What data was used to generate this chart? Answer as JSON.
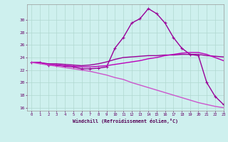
{
  "xlabel": "Windchill (Refroidissement éolien,°C)",
  "background_color": "#cef0ee",
  "plot_bg_color": "#cef0ee",
  "grid_color": "#b0d8d0",
  "xlim": [
    -0.5,
    23
  ],
  "ylim": [
    15.5,
    32.5
  ],
  "xticks": [
    0,
    1,
    2,
    3,
    4,
    5,
    6,
    7,
    8,
    9,
    10,
    11,
    12,
    13,
    14,
    15,
    16,
    17,
    18,
    19,
    20,
    21,
    22,
    23
  ],
  "yticks": [
    16,
    18,
    20,
    22,
    24,
    26,
    28,
    30
  ],
  "series": [
    {
      "x": [
        0,
        1,
        2,
        3,
        4,
        5,
        6,
        7,
        8,
        9,
        10,
        11,
        12,
        13,
        14,
        15,
        16,
        17,
        18,
        19,
        20,
        21,
        22,
        23
      ],
      "y": [
        23.2,
        23.2,
        22.8,
        22.8,
        22.6,
        22.5,
        22.2,
        22.2,
        22.3,
        22.5,
        25.5,
        27.2,
        29.5,
        30.2,
        31.8,
        31.0,
        29.5,
        27.2,
        25.5,
        24.5,
        24.3,
        20.0,
        17.8,
        16.5
      ],
      "color": "#990099",
      "lw": 1.0,
      "marker": "+"
    },
    {
      "x": [
        0,
        1,
        2,
        3,
        4,
        5,
        6,
        7,
        8,
        9,
        10,
        11,
        12,
        13,
        14,
        15,
        16,
        17,
        18,
        19,
        20,
        21,
        22,
        23
      ],
      "y": [
        23.2,
        23.2,
        23.0,
        23.0,
        22.9,
        22.8,
        22.7,
        22.8,
        23.0,
        23.3,
        23.7,
        24.0,
        24.1,
        24.2,
        24.3,
        24.3,
        24.4,
        24.4,
        24.5,
        24.5,
        24.5,
        24.3,
        24.2,
        24.1
      ],
      "color": "#990099",
      "lw": 1.0,
      "marker": null
    },
    {
      "x": [
        0,
        1,
        2,
        3,
        4,
        5,
        6,
        7,
        8,
        9,
        10,
        11,
        12,
        13,
        14,
        15,
        16,
        17,
        18,
        19,
        20,
        21,
        22,
        23
      ],
      "y": [
        23.2,
        23.2,
        22.9,
        22.8,
        22.7,
        22.6,
        22.5,
        22.5,
        22.6,
        22.7,
        22.9,
        23.1,
        23.3,
        23.5,
        23.8,
        24.0,
        24.3,
        24.5,
        24.7,
        24.8,
        24.8,
        24.5,
        24.0,
        23.5
      ],
      "color": "#bb00bb",
      "lw": 1.0,
      "marker": null
    },
    {
      "x": [
        0,
        1,
        2,
        3,
        4,
        5,
        6,
        7,
        8,
        9,
        10,
        11,
        12,
        13,
        14,
        15,
        16,
        17,
        18,
        19,
        20,
        21,
        22,
        23
      ],
      "y": [
        23.2,
        23.0,
        22.8,
        22.6,
        22.4,
        22.2,
        22.0,
        21.8,
        21.5,
        21.2,
        20.8,
        20.5,
        20.0,
        19.6,
        19.2,
        18.8,
        18.4,
        18.0,
        17.6,
        17.2,
        16.8,
        16.5,
        16.2,
        16.0
      ],
      "color": "#cc55cc",
      "lw": 1.0,
      "marker": null
    }
  ]
}
